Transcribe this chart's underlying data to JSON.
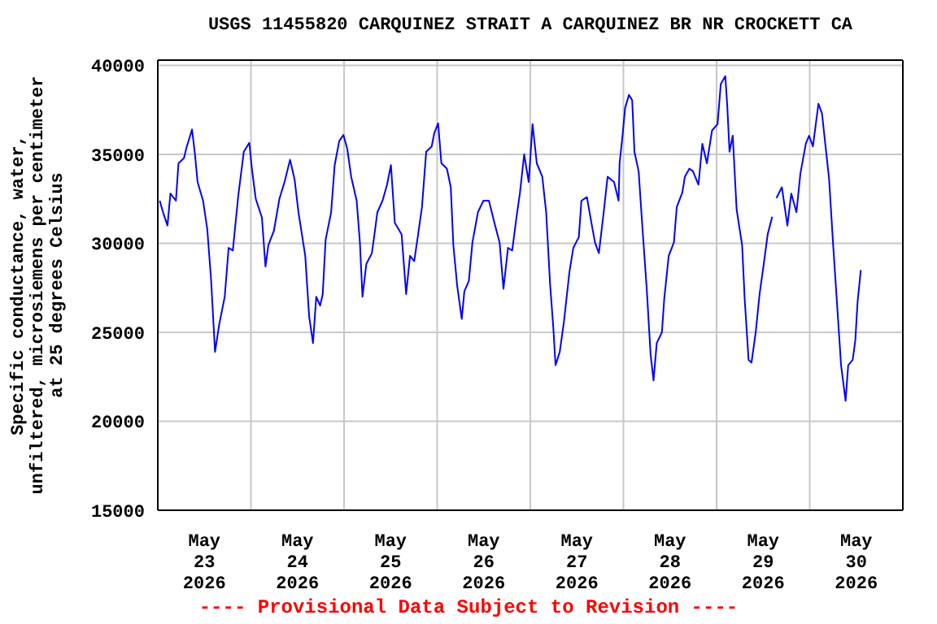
{
  "chart_data": {
    "type": "line",
    "title": "USGS 11455820 CARQUINEZ STRAIT A CARQUINEZ BR NR CROCKETT CA",
    "ylabel": "Specific conductance, water,\nunfiltered, microsiemens per centimeter\nat 25 degrees Celsius",
    "annotations": [
      "---- Provisional Data Subject to Revision ----"
    ],
    "series": [
      {
        "color": "#0000ff",
        "x": [
          "2026-05-23T00:30",
          "2026-05-23T01:25",
          "2026-05-23T02:30",
          "2026-05-23T03:15",
          "2026-05-23T04:40",
          "2026-05-23T05:20",
          "2026-05-23T06:45",
          "2026-05-23T07:25",
          "2026-05-23T08:50",
          "2026-05-23T09:35",
          "2026-05-23T10:15",
          "2026-05-23T11:40",
          "2026-05-23T12:45",
          "2026-05-23T13:45",
          "2026-05-23T14:45",
          "2026-05-23T15:50",
          "2026-05-23T17:15",
          "2026-05-23T18:15",
          "2026-05-23T19:20",
          "2026-05-23T20:45",
          "2026-05-23T22:10",
          "2026-05-23T23:35",
          "2026-05-24T00:15",
          "2026-05-24T01:15",
          "2026-05-24T02:50",
          "2026-05-24T03:45",
          "2026-05-24T04:30",
          "2026-05-24T05:55",
          "2026-05-24T07:20",
          "2026-05-24T08:40",
          "2026-05-24T10:05",
          "2026-05-24T11:15",
          "2026-05-24T12:15",
          "2026-05-24T14:00",
          "2026-05-24T15:00",
          "2026-05-24T16:00",
          "2026-05-24T16:50",
          "2026-05-24T17:50",
          "2026-05-24T18:30",
          "2026-05-24T19:15",
          "2026-05-24T20:40",
          "2026-05-24T21:35",
          "2026-05-24T22:45",
          "2026-05-24T23:50",
          "2026-05-25T00:50",
          "2026-05-25T01:50",
          "2026-05-25T03:15",
          "2026-05-25T04:05",
          "2026-05-25T04:45",
          "2026-05-25T05:45",
          "2026-05-25T07:10",
          "2026-05-25T07:50",
          "2026-05-25T08:35",
          "2026-05-25T09:55",
          "2026-05-25T11:05",
          "2026-05-25T12:05",
          "2026-05-25T13:05",
          "2026-05-25T14:50",
          "2026-05-25T16:00",
          "2026-05-25T17:00",
          "2026-05-25T18:05",
          "2026-05-25T19:05",
          "2026-05-25T20:05",
          "2026-05-25T21:10",
          "2026-05-25T22:35",
          "2026-05-25T23:15",
          "2026-05-26T00:15",
          "2026-05-26T01:05",
          "2026-05-26T02:30",
          "2026-05-26T03:30",
          "2026-05-26T04:10",
          "2026-05-26T05:10",
          "2026-05-26T06:20",
          "2026-05-26T07:00",
          "2026-05-26T08:10",
          "2026-05-26T09:05",
          "2026-05-26T10:30",
          "2026-05-26T11:55",
          "2026-05-26T13:20",
          "2026-05-26T14:45",
          "2026-05-26T16:05",
          "2026-05-26T17:05",
          "2026-05-26T18:15",
          "2026-05-26T19:20",
          "2026-05-26T20:20",
          "2026-05-26T21:20",
          "2026-05-26T22:25",
          "2026-05-26T23:35",
          "2026-05-27T00:35",
          "2026-05-27T01:40",
          "2026-05-27T03:05",
          "2026-05-27T04:05",
          "2026-05-27T05:05",
          "2026-05-27T05:55",
          "2026-05-27T06:30",
          "2026-05-27T07:35",
          "2026-05-27T08:40",
          "2026-05-27T10:05",
          "2026-05-27T11:05",
          "2026-05-27T12:30",
          "2026-05-27T13:10",
          "2026-05-27T14:35",
          "2026-05-27T15:45",
          "2026-05-27T16:40",
          "2026-05-27T17:40",
          "2026-05-27T18:50",
          "2026-05-27T19:55",
          "2026-05-27T21:35",
          "2026-05-27T22:45",
          "2026-05-27T23:00",
          "2026-05-27T23:50",
          "2026-05-28T00:25",
          "2026-05-28T01:25",
          "2026-05-28T02:15",
          "2026-05-28T02:50",
          "2026-05-28T03:55",
          "2026-05-28T04:55",
          "2026-05-28T06:00",
          "2026-05-28T07:00",
          "2026-05-28T07:45",
          "2026-05-28T08:35",
          "2026-05-28T09:55",
          "2026-05-28T10:30",
          "2026-05-28T11:40",
          "2026-05-28T13:00",
          "2026-05-28T13:45",
          "2026-05-28T15:10",
          "2026-05-28T15:50",
          "2026-05-28T17:00",
          "2026-05-28T17:55",
          "2026-05-28T19:20",
          "2026-05-28T20:20",
          "2026-05-28T21:30",
          "2026-05-28T22:50",
          "2026-05-29T00:15",
          "2026-05-29T01:05",
          "2026-05-29T02:15",
          "2026-05-29T02:45",
          "2026-05-29T03:20",
          "2026-05-29T04:10",
          "2026-05-29T05:10",
          "2026-05-29T06:35",
          "2026-05-29T07:15",
          "2026-05-29T08:15",
          "2026-05-29T09:00",
          "2026-05-29T10:05",
          "2026-05-29T11:05",
          "2026-05-29T12:10",
          "2026-05-29T13:10",
          "2026-05-29T14:20",
          "2026-05-29T14:50",
          "2026-05-29T15:25",
          "2026-05-29T16:50",
          "2026-05-29T18:15",
          "2026-05-29T19:15",
          "2026-05-29T20:35",
          "2026-05-29T21:35",
          "2026-05-29T23:00",
          "2026-05-29T23:50",
          "2026-05-30T00:50",
          "2026-05-30T02:15",
          "2026-05-30T03:10",
          "2026-05-30T04:05",
          "2026-05-30T05:00",
          "2026-05-30T06:00",
          "2026-05-30T07:10",
          "2026-05-30T08:05",
          "2026-05-30T09:15",
          "2026-05-30T09:55",
          "2026-05-30T11:05",
          "2026-05-30T11:45",
          "2026-05-30T12:20",
          "2026-05-30T13:10"
        ],
        "values": [
          32400,
          31700,
          31000,
          32800,
          32400,
          34500,
          34800,
          35400,
          36400,
          35000,
          33450,
          32400,
          30800,
          27900,
          23900,
          25450,
          27000,
          29750,
          29600,
          32700,
          35150,
          35650,
          34200,
          32500,
          31450,
          28700,
          29900,
          30700,
          32500,
          33450,
          34700,
          33600,
          31750,
          29300,
          25900,
          24400,
          27000,
          26500,
          27150,
          30200,
          31750,
          34400,
          35750,
          36100,
          35300,
          33750,
          32400,
          30050,
          27000,
          28850,
          29450,
          30500,
          31750,
          32400,
          33300,
          34400,
          31150,
          30500,
          27150,
          29300,
          29000,
          30500,
          32050,
          35150,
          35450,
          36200,
          36750,
          34500,
          34200,
          33150,
          29900,
          27600,
          25750,
          27300,
          27900,
          30050,
          31750,
          32400,
          32400,
          31150,
          30050,
          27450,
          29750,
          29600,
          31300,
          32850,
          35000,
          33450,
          36700,
          34500,
          33750,
          31750,
          27750,
          25300,
          23150,
          23900,
          25600,
          28400,
          29750,
          30350,
          32400,
          32600,
          31150,
          30050,
          29450,
          31600,
          33750,
          33450,
          32400,
          34500,
          36200,
          37600,
          38350,
          38050,
          35150,
          34050,
          30800,
          27450,
          23750,
          22300,
          24400,
          25000,
          26850,
          29300,
          30050,
          32050,
          32850,
          33750,
          34200,
          34050,
          33300,
          35600,
          34500,
          36350,
          36700,
          38950,
          39400,
          37750,
          35150,
          36050,
          31900,
          29900,
          26850,
          23450,
          23300,
          25000,
          27150,
          28850,
          30500,
          31500,
          null,
          32550,
          33150,
          31000,
          32800,
          31750,
          33900,
          35600,
          36050,
          35450,
          37850,
          37300,
          35450,
          33600,
          30050,
          26200,
          23150,
          21150,
          23150,
          23450,
          24550,
          26700,
          28500
        ]
      }
    ],
    "xlim": [
      "2026-05-23T00:00",
      "2026-05-31T00:00"
    ],
    "xticks": [
      {
        "value": "2026-05-23T12:00",
        "label": "May\n23\n2026"
      },
      {
        "value": "2026-05-24T00:00",
        "label": null
      },
      {
        "value": "2026-05-24T12:00",
        "label": "May\n24\n2026"
      },
      {
        "value": "2026-05-25T00:00",
        "label": null
      },
      {
        "value": "2026-05-25T12:00",
        "label": "May\n25\n2026"
      },
      {
        "value": "2026-05-26T00:00",
        "label": null
      },
      {
        "value": "2026-05-26T12:00",
        "label": "May\n26\n2026"
      },
      {
        "value": "2026-05-27T00:00",
        "label": null
      },
      {
        "value": "2026-05-27T12:00",
        "label": "May\n27\n2026"
      },
      {
        "value": "2026-05-28T00:00",
        "label": null
      },
      {
        "value": "2026-05-28T12:00",
        "label": "May\n28\n2026"
      },
      {
        "value": "2026-05-29T00:00",
        "label": null
      },
      {
        "value": "2026-05-29T12:00",
        "label": "May\n29\n2026"
      },
      {
        "value": "2026-05-30T00:00",
        "label": null
      },
      {
        "value": "2026-05-30T12:00",
        "label": "May\n30\n2026"
      }
    ],
    "ylim": [
      15000,
      40300
    ],
    "yticks": [
      15000,
      20000,
      25000,
      30000,
      35000,
      40000
    ],
    "grid": true,
    "marker": "none",
    "line_style": "solid"
  }
}
